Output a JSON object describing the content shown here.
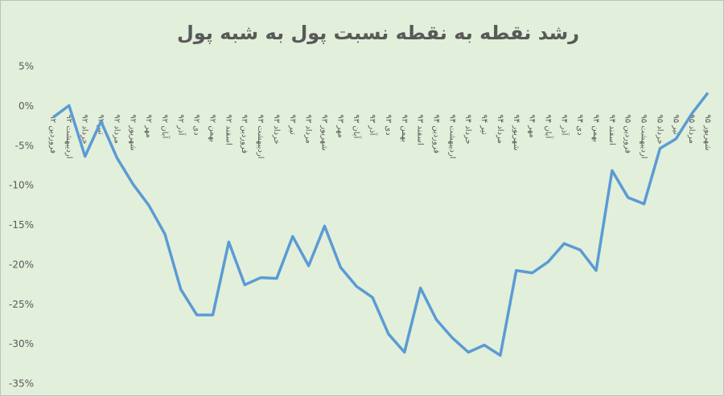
{
  "chart_data": {
    "type": "line",
    "title": "رشد نقطه به نقطه نسبت پول به شبه پول",
    "categories": [
      "فروردین ۹۲",
      "اردیبهشت ۹۲",
      "خرداد ۹۲",
      "تیر ۹۲",
      "مرداد ۹۲",
      "شهریور ۹۲",
      "مهر ۹۲",
      "آبان ۹۲",
      "آذر ۹۲",
      "دی ۹۲",
      "بهمن ۹۲",
      "اسفند ۹۲",
      "فروردین ۹۳",
      "اردیبهشت ۹۳",
      "خرداد ۹۳",
      "تیر ۹۳",
      "مرداد ۹۳",
      "شهریور ۹۳",
      "مهر ۹۳",
      "آبان ۹۳",
      "آذر ۹۳",
      "دی ۹۳",
      "بهمن ۹۳",
      "اسفند ۹۳",
      "فروردین ۹۴",
      "اردیبهشت ۹۴",
      "خرداد ۹۴",
      "تیر ۹۴",
      "مرداد ۹۴",
      "شهریور ۹۴",
      "مهر ۹۴",
      "آبان ۹۴",
      "آذر ۹۴",
      "دی ۹۴",
      "بهمن ۹۴",
      "اسفند ۹۴",
      "فروردین ۹۵",
      "اردیبهشت ۹۵",
      "خرداد ۹۵",
      "تیر ۹۵",
      "مرداد ۹۵",
      "شهریور ۹۵"
    ],
    "values": [
      -1.4,
      0.1,
      -6.3,
      -1.9,
      -6.5,
      -9.8,
      -12.5,
      -16.1,
      -23.1,
      -26.3,
      -26.3,
      -17.1,
      -22.5,
      -21.6,
      -21.7,
      -16.4,
      -20.1,
      -15.1,
      -20.3,
      -22.7,
      -24.1,
      -28.7,
      -31.0,
      -22.9,
      -26.9,
      -29.2,
      -31.0,
      -30.1,
      -31.4,
      -20.7,
      -21.0,
      -19.6,
      -17.3,
      -18.1,
      -20.7,
      -8.1,
      -11.5,
      -12.3,
      -5.3,
      -4.1,
      -0.9,
      1.7
    ],
    "color": "#5b9bd5",
    "ylim": [
      5,
      -35
    ],
    "yticks": [
      {
        "value": 5,
        "label": "5%"
      },
      {
        "value": 0,
        "label": "0%"
      },
      {
        "value": -5,
        "label": "-5%"
      },
      {
        "value": -10,
        "label": "-10%"
      },
      {
        "value": -15,
        "label": "-15%"
      },
      {
        "value": -20,
        "label": "-20%"
      },
      {
        "value": -25,
        "label": "-25%"
      },
      {
        "value": -30,
        "label": "-30%"
      },
      {
        "value": -35,
        "label": "-35%"
      }
    ],
    "grid": false
  }
}
